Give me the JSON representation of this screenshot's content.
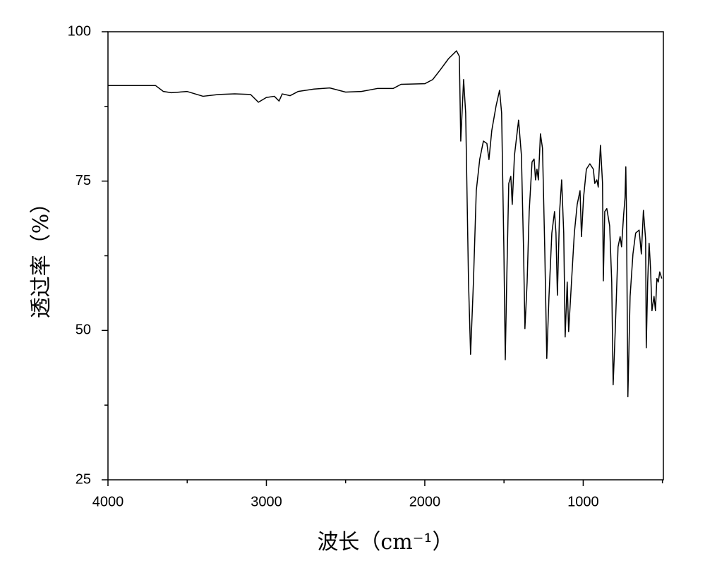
{
  "chart_data": {
    "type": "line",
    "x_label": "波长（cm⁻¹）",
    "y_label": "透过率（%）",
    "xlim": [
      4000,
      494
    ],
    "ylim": [
      25,
      100
    ],
    "xticks": [
      4000,
      3000,
      2000,
      1000
    ],
    "yticks": [
      25,
      50,
      75,
      100
    ],
    "x_minor_ticks": [
      3500,
      2500,
      1500,
      500
    ],
    "y_minor_ticks": [
      37.5,
      62.5,
      87.5
    ],
    "x": [
      4000,
      3700,
      3650,
      3600,
      3500,
      3450,
      3400,
      3300,
      3200,
      3100,
      3050,
      3000,
      2950,
      2920,
      2900,
      2850,
      2800,
      2700,
      2600,
      2500,
      2400,
      2300,
      2200,
      2150,
      2000,
      1950,
      1900,
      1850,
      1800,
      1782,
      1773,
      1755,
      1742,
      1724,
      1711,
      1693,
      1675,
      1653,
      1630,
      1608,
      1595,
      1577,
      1550,
      1528,
      1515,
      1501,
      1492,
      1483,
      1470,
      1457,
      1448,
      1434,
      1408,
      1390,
      1377,
      1368,
      1354,
      1341,
      1323,
      1310,
      1301,
      1292,
      1283,
      1270,
      1257,
      1243,
      1230,
      1216,
      1198,
      1181,
      1172,
      1163,
      1149,
      1136,
      1123,
      1114,
      1101,
      1092,
      1074,
      1056,
      1038,
      1020,
      1011,
      998,
      980,
      958,
      936,
      927,
      914,
      905,
      891,
      878,
      873,
      864,
      851,
      833,
      820,
      811,
      798,
      780,
      767,
      758,
      745,
      736,
      731,
      727,
      718,
      704,
      686,
      669,
      647,
      633,
      620,
      606,
      602,
      593,
      584,
      575,
      566,
      553,
      544,
      535,
      526,
      517,
      504
    ],
    "series": [
      {
        "color": "#000000",
        "values": [
          91.0,
          91.0,
          90.0,
          89.8,
          90.0,
          89.6,
          89.2,
          89.5,
          89.6,
          89.5,
          88.2,
          89.0,
          89.2,
          88.4,
          89.6,
          89.3,
          90.0,
          90.4,
          90.6,
          89.9,
          90.0,
          90.5,
          90.5,
          91.2,
          91.3,
          92.0,
          93.7,
          95.5,
          96.8,
          95.9,
          81.7,
          92.0,
          86.4,
          58.1,
          46.0,
          58.1,
          73.4,
          78.7,
          81.7,
          81.3,
          78.6,
          83.5,
          87.6,
          90.2,
          86.4,
          64.0,
          45.1,
          58.1,
          74.6,
          75.8,
          71.1,
          79.3,
          85.2,
          79.3,
          64.0,
          50.3,
          58.1,
          69.9,
          78.2,
          78.7,
          75.2,
          77.0,
          75.2,
          82.9,
          80.5,
          64.0,
          45.3,
          55.7,
          66.3,
          69.9,
          66.3,
          55.9,
          69.9,
          75.2,
          66.3,
          48.9,
          58.1,
          49.8,
          58.1,
          66.3,
          71.1,
          73.4,
          65.7,
          72.2,
          77.0,
          77.9,
          77.0,
          74.6,
          75.2,
          74.0,
          81.0,
          74.6,
          58.3,
          69.9,
          70.4,
          67.5,
          58.1,
          40.9,
          49.8,
          64.0,
          65.7,
          64.0,
          69.3,
          72.2,
          77.4,
          69.9,
          38.9,
          55.7,
          62.8,
          66.3,
          66.8,
          62.8,
          70.1,
          65.2,
          47.1,
          58.1,
          64.6,
          60.4,
          53.3,
          55.7,
          53.3,
          58.7,
          58.1,
          59.8,
          58.7
        ]
      }
    ]
  }
}
